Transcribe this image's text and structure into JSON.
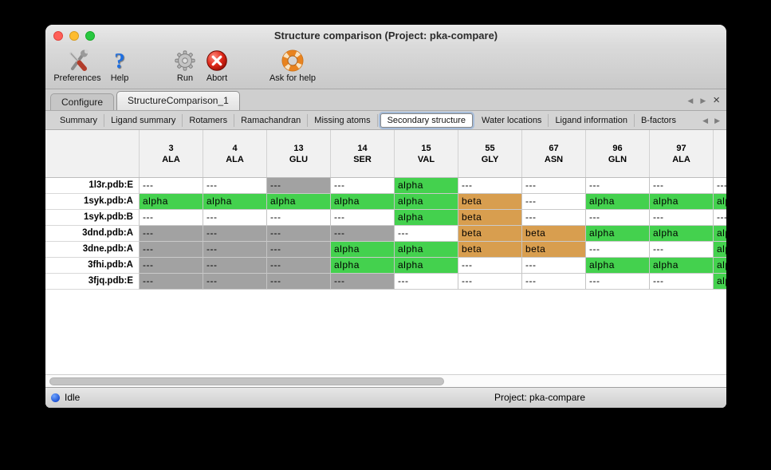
{
  "window": {
    "title": "Structure comparison (Project: pka-compare)"
  },
  "toolbar": {
    "items": [
      {
        "label": "Preferences",
        "icon": "tools-icon"
      },
      {
        "label": "Help",
        "icon": "question-icon"
      },
      {
        "label": "Run",
        "icon": "gear-icon"
      },
      {
        "label": "Abort",
        "icon": "abort-icon"
      },
      {
        "label": "Ask for help",
        "icon": "life-ring-icon"
      }
    ]
  },
  "doc_tabs": [
    {
      "label": "Configure",
      "selected": false
    },
    {
      "label": "StructureComparison_1",
      "selected": true
    }
  ],
  "page_tabs": {
    "items": [
      "Summary",
      "Ligand summary",
      "Rotamers",
      "Ramachandran",
      "Missing atoms",
      "Secondary structure",
      "Water locations",
      "Ligand information",
      "B-factors"
    ],
    "selected": "Secondary structure"
  },
  "nav": {
    "prev": "◀",
    "next": "▶",
    "close": "×"
  },
  "colors": {
    "alpha_green": "#44d14e",
    "beta_orange": "#d89e4f",
    "missing_gray": "#a2a2a2",
    "status_blue": "#1c4fd1"
  },
  "table": {
    "columns": [
      {
        "num": "3",
        "res": "ALA"
      },
      {
        "num": "4",
        "res": "ALA"
      },
      {
        "num": "13",
        "res": "GLU"
      },
      {
        "num": "14",
        "res": "SER"
      },
      {
        "num": "15",
        "res": "VAL"
      },
      {
        "num": "55",
        "res": "GLY"
      },
      {
        "num": "67",
        "res": "ASN"
      },
      {
        "num": "96",
        "res": "GLN"
      },
      {
        "num": "97",
        "res": "ALA"
      },
      {
        "num": "",
        "res": ""
      }
    ],
    "rows": [
      {
        "name": "1l3r.pdb:E",
        "cells": [
          {
            "text": "---",
            "state": "blank"
          },
          {
            "text": "---",
            "state": "blank"
          },
          {
            "text": "---",
            "state": "missing"
          },
          {
            "text": "---",
            "state": "blank"
          },
          {
            "text": "alpha",
            "state": "alpha"
          },
          {
            "text": "---",
            "state": "blank"
          },
          {
            "text": "---",
            "state": "blank"
          },
          {
            "text": "---",
            "state": "blank"
          },
          {
            "text": "---",
            "state": "blank"
          },
          {
            "text": "---",
            "state": "blank"
          }
        ]
      },
      {
        "name": "1syk.pdb:A",
        "cells": [
          {
            "text": "alpha",
            "state": "alpha"
          },
          {
            "text": "alpha",
            "state": "alpha"
          },
          {
            "text": "alpha",
            "state": "alpha"
          },
          {
            "text": "alpha",
            "state": "alpha"
          },
          {
            "text": "alpha",
            "state": "alpha"
          },
          {
            "text": "beta",
            "state": "beta"
          },
          {
            "text": "---",
            "state": "blank"
          },
          {
            "text": "alpha",
            "state": "alpha"
          },
          {
            "text": "alpha",
            "state": "alpha"
          },
          {
            "text": "alpha",
            "state": "alpha"
          }
        ]
      },
      {
        "name": "1syk.pdb:B",
        "cells": [
          {
            "text": "---",
            "state": "blank"
          },
          {
            "text": "---",
            "state": "blank"
          },
          {
            "text": "---",
            "state": "blank"
          },
          {
            "text": "---",
            "state": "blank"
          },
          {
            "text": "alpha",
            "state": "alpha"
          },
          {
            "text": "beta",
            "state": "beta"
          },
          {
            "text": "---",
            "state": "blank"
          },
          {
            "text": "---",
            "state": "blank"
          },
          {
            "text": "---",
            "state": "blank"
          },
          {
            "text": "---",
            "state": "blank"
          }
        ]
      },
      {
        "name": "3dnd.pdb:A",
        "cells": [
          {
            "text": "---",
            "state": "missing"
          },
          {
            "text": "---",
            "state": "missing"
          },
          {
            "text": "---",
            "state": "missing"
          },
          {
            "text": "---",
            "state": "missing"
          },
          {
            "text": "---",
            "state": "blank"
          },
          {
            "text": "beta",
            "state": "beta"
          },
          {
            "text": "beta",
            "state": "beta"
          },
          {
            "text": "alpha",
            "state": "alpha"
          },
          {
            "text": "alpha",
            "state": "alpha"
          },
          {
            "text": "alpha",
            "state": "alpha"
          }
        ]
      },
      {
        "name": "3dne.pdb:A",
        "cells": [
          {
            "text": "---",
            "state": "missing"
          },
          {
            "text": "---",
            "state": "missing"
          },
          {
            "text": "---",
            "state": "missing"
          },
          {
            "text": "alpha",
            "state": "alpha"
          },
          {
            "text": "alpha",
            "state": "alpha"
          },
          {
            "text": "beta",
            "state": "beta"
          },
          {
            "text": "beta",
            "state": "beta"
          },
          {
            "text": "---",
            "state": "blank"
          },
          {
            "text": "---",
            "state": "blank"
          },
          {
            "text": "alpha",
            "state": "alpha"
          }
        ]
      },
      {
        "name": "3fhi.pdb:A",
        "cells": [
          {
            "text": "---",
            "state": "missing"
          },
          {
            "text": "---",
            "state": "missing"
          },
          {
            "text": "---",
            "state": "missing"
          },
          {
            "text": "alpha",
            "state": "alpha"
          },
          {
            "text": "alpha",
            "state": "alpha"
          },
          {
            "text": "---",
            "state": "blank"
          },
          {
            "text": "---",
            "state": "blank"
          },
          {
            "text": "alpha",
            "state": "alpha"
          },
          {
            "text": "alpha",
            "state": "alpha"
          },
          {
            "text": "alpha",
            "state": "alpha"
          }
        ]
      },
      {
        "name": "3fjq.pdb:E",
        "cells": [
          {
            "text": "---",
            "state": "missing"
          },
          {
            "text": "---",
            "state": "missing"
          },
          {
            "text": "---",
            "state": "missing"
          },
          {
            "text": "---",
            "state": "missing"
          },
          {
            "text": "---",
            "state": "blank"
          },
          {
            "text": "---",
            "state": "blank"
          },
          {
            "text": "---",
            "state": "blank"
          },
          {
            "text": "---",
            "state": "blank"
          },
          {
            "text": "---",
            "state": "blank"
          },
          {
            "text": "alpha",
            "state": "alpha"
          }
        ]
      }
    ]
  },
  "statusbar": {
    "status": "Idle",
    "project": "Project: pka-compare"
  }
}
